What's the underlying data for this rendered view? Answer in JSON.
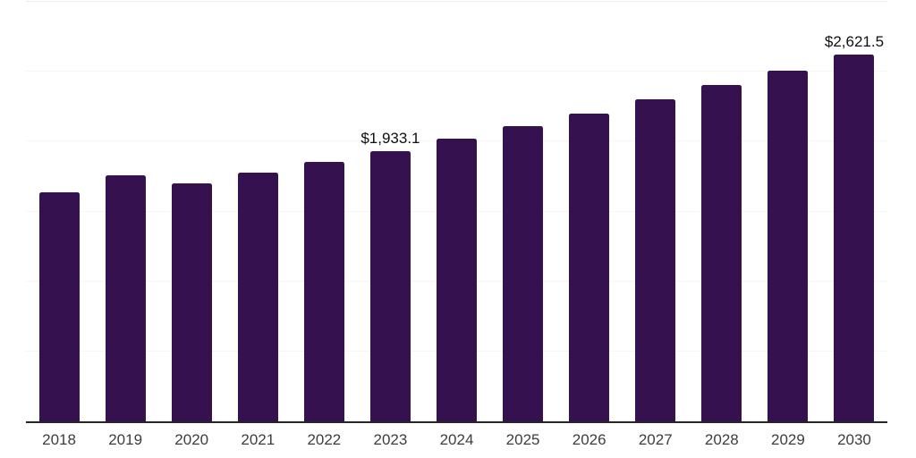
{
  "chart": {
    "background_color": "#ffffff",
    "bar_color": "#351150",
    "axis_line_color": "#262626",
    "gridline_color": "#f6f6f6",
    "top_gridline_color": "#ebebeb",
    "tick_label_color": "#3d3d3d",
    "value_label_color": "#0f0f0f"
  },
  "chart_data": {
    "type": "bar",
    "title": "",
    "xlabel": "",
    "ylabel": "",
    "ylim": [
      0,
      3000
    ],
    "gridline_step": 500,
    "grid": "horizontal",
    "legend": "none",
    "categories": [
      "2018",
      "2019",
      "2020",
      "2021",
      "2022",
      "2023",
      "2024",
      "2025",
      "2026",
      "2027",
      "2028",
      "2029",
      "2030"
    ],
    "values": [
      1637,
      1760,
      1700,
      1777,
      1855,
      1933.1,
      2019,
      2109,
      2203,
      2301,
      2403,
      2510,
      2621.5
    ],
    "points": [
      {
        "year": "2018",
        "value": 1637
      },
      {
        "year": "2019",
        "value": 1760
      },
      {
        "year": "2020",
        "value": 1700
      },
      {
        "year": "2021",
        "value": 1777
      },
      {
        "year": "2022",
        "value": 1855
      },
      {
        "year": "2023",
        "value": 1933.1,
        "label": "$1,933.1"
      },
      {
        "year": "2024",
        "value": 2019
      },
      {
        "year": "2025",
        "value": 2109
      },
      {
        "year": "2026",
        "value": 2203
      },
      {
        "year": "2027",
        "value": 2301
      },
      {
        "year": "2028",
        "value": 2403
      },
      {
        "year": "2029",
        "value": 2510
      },
      {
        "year": "2030",
        "value": 2621.5,
        "label": "$2,621.5"
      }
    ]
  }
}
